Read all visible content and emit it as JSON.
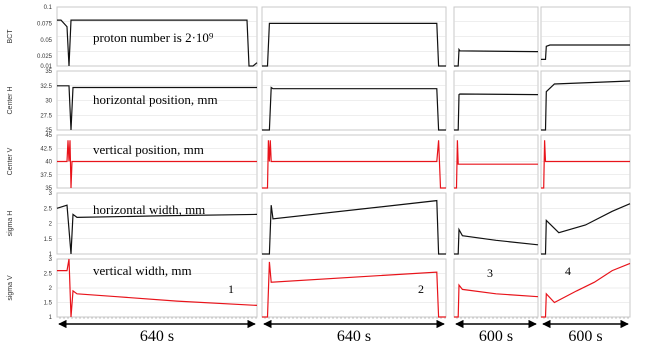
{
  "chart_data": {
    "type": "line",
    "colors": {
      "black": "#111111",
      "red": "#e8141b",
      "grid": "#dcdcdc",
      "frame": "#c8c8c8",
      "panel": "#ffffff"
    },
    "rows": [
      {
        "id": "bct",
        "ylabel": "BCT",
        "ylim": [
          0.01,
          0.1
        ],
        "ticks": [
          "0.1",
          "0.075",
          "0.05",
          "0.025",
          "0.01"
        ],
        "tickvals": [
          0.1,
          0.075,
          0.05,
          0.025,
          0.01
        ],
        "annotation": "proton number is 2·10⁹",
        "color": "black"
      },
      {
        "id": "centerH",
        "ylabel": "Center H",
        "ylim": [
          25,
          35
        ],
        "ticks": [
          "35",
          "32.5",
          "30",
          "27.5",
          "25"
        ],
        "tickvals": [
          35,
          32.5,
          30,
          27.5,
          25
        ],
        "annotation": "horizontal position, mm",
        "color": "black"
      },
      {
        "id": "centerV",
        "ylabel": "Center V",
        "ylim": [
          35,
          45
        ],
        "ticks": [
          "45",
          "42.5",
          "40",
          "37.5",
          "35"
        ],
        "tickvals": [
          45,
          42.5,
          40,
          37.5,
          35
        ],
        "annotation": "vertical position, mm",
        "color": "red"
      },
      {
        "id": "sigmaH",
        "ylabel": "sigma H",
        "ylim": [
          1,
          3
        ],
        "ticks": [
          "3",
          "2.5",
          "2",
          "1.5",
          "1"
        ],
        "tickvals": [
          3,
          2.5,
          2,
          1.5,
          1
        ],
        "annotation": "horizontal width, mm",
        "color": "black"
      },
      {
        "id": "sigmaV",
        "ylabel": "sigma V",
        "ylim": [
          1,
          3
        ],
        "ticks": [
          "3",
          "2.5",
          "2",
          "1.5",
          "1"
        ],
        "tickvals": [
          3,
          2.5,
          2,
          1.5,
          1
        ],
        "annotation": "vertical width, mm",
        "color": "red"
      }
    ],
    "runs": [
      {
        "label": "1",
        "duration": "640 s",
        "series": {
          "bct": {
            "t": [
              0,
              0.02,
              0.05,
              0.06,
              0.07,
              0.08,
              0.9,
              0.95,
              0.96,
              0.98,
              1.0
            ],
            "v": [
              0.08,
              0.08,
              0.07,
              0.01,
              0.08,
              0.08,
              0.08,
              0.08,
              0.01,
              0.01,
              0.015
            ]
          },
          "centerH": {
            "t": [
              0,
              0.06,
              0.07,
              0.08,
              0.09,
              1.0
            ],
            "v": [
              32.5,
              32.5,
              25,
              32.2,
              32.2,
              32.2
            ]
          },
          "centerV": {
            "t": [
              0,
              0.05,
              0.055,
              0.06,
              0.065,
              0.07,
              0.075,
              1.0
            ],
            "v": [
              40,
              40,
              44,
              40,
              44,
              35,
              40,
              40
            ]
          },
          "sigmaH": {
            "t": [
              0,
              0.05,
              0.07,
              0.08,
              0.1,
              0.5,
              1.0
            ],
            "v": [
              2.5,
              2.6,
              1.0,
              2.3,
              2.2,
              2.25,
              2.3
            ]
          },
          "sigmaV": {
            "t": [
              0,
              0.05,
              0.06,
              0.07,
              0.08,
              0.1,
              0.3,
              0.6,
              1.0
            ],
            "v": [
              2.6,
              2.6,
              3.0,
              1.0,
              1.9,
              1.8,
              1.7,
              1.55,
              1.4
            ]
          }
        }
      },
      {
        "label": "2",
        "duration": "640 s",
        "series": {
          "bct": {
            "t": [
              0,
              0.03,
              0.04,
              0.06,
              0.9,
              0.95,
              0.96,
              1.0
            ],
            "v": [
              0.01,
              0.01,
              0.075,
              0.075,
              0.075,
              0.075,
              0.01,
              0.01
            ]
          },
          "centerH": {
            "t": [
              0,
              0.04,
              0.05,
              0.06,
              0.95,
              0.96,
              1.0
            ],
            "v": [
              25,
              25,
              32.2,
              32,
              32,
              25,
              25
            ]
          },
          "centerV": {
            "t": [
              0,
              0.03,
              0.035,
              0.04,
              0.045,
              0.05,
              0.95,
              0.96,
              0.97,
              1.0
            ],
            "v": [
              35,
              35,
              44,
              40,
              44,
              40,
              40,
              44,
              35,
              35
            ]
          },
          "sigmaH": {
            "t": [
              0,
              0.04,
              0.05,
              0.06,
              0.95,
              0.96,
              1.0
            ],
            "v": [
              1,
              1,
              2.6,
              2.15,
              2.75,
              1,
              1
            ]
          },
          "sigmaV": {
            "t": [
              0,
              0.03,
              0.04,
              0.05,
              0.95,
              0.96,
              1.0
            ],
            "v": [
              1,
              1,
              2.9,
              2.2,
              2.55,
              1,
              1
            ]
          }
        }
      },
      {
        "label": "3",
        "duration": "600 s",
        "series": {
          "bct": {
            "t": [
              0,
              0.05,
              0.06,
              0.07,
              0.98,
              1.0
            ],
            "v": [
              0.01,
              0.01,
              0.035,
              0.033,
              0.032,
              0.032
            ]
          },
          "centerH": {
            "t": [
              0,
              0.05,
              0.06,
              0.07,
              1.0
            ],
            "v": [
              25,
              25,
              31,
              31.1,
              31
            ]
          },
          "centerV": {
            "t": [
              0,
              0.03,
              0.04,
              0.05,
              1.0
            ],
            "v": [
              35,
              35,
              44,
              39.5,
              39.5
            ]
          },
          "sigmaH": {
            "t": [
              0,
              0.05,
              0.06,
              0.1,
              0.5,
              1.0
            ],
            "v": [
              1,
              1,
              1.8,
              1.6,
              1.45,
              1.3
            ]
          },
          "sigmaV": {
            "t": [
              0,
              0.05,
              0.06,
              0.1,
              0.5,
              1.0
            ],
            "v": [
              1,
              1,
              2.1,
              1.95,
              1.8,
              1.7
            ]
          }
        }
      },
      {
        "label": "4",
        "duration": "600 s",
        "series": {
          "bct": {
            "t": [
              0,
              0.05,
              0.06,
              0.1,
              0.98,
              1.0
            ],
            "v": [
              0.02,
              0.02,
              0.04,
              0.042,
              0.042,
              0.042
            ]
          },
          "centerH": {
            "t": [
              0,
              0.05,
              0.06,
              0.15,
              1.0
            ],
            "v": [
              25,
              25,
              31.5,
              32.8,
              33.3
            ]
          },
          "centerV": {
            "t": [
              0,
              0.03,
              0.04,
              0.05,
              1.0
            ],
            "v": [
              35,
              35,
              44,
              40,
              40
            ]
          },
          "sigmaH": {
            "t": [
              0,
              0.05,
              0.06,
              0.2,
              0.5,
              0.8,
              1.0
            ],
            "v": [
              1,
              1,
              2.1,
              1.7,
              1.95,
              2.4,
              2.65
            ]
          },
          "sigmaV": {
            "t": [
              0,
              0.05,
              0.06,
              0.15,
              0.4,
              0.6,
              0.8,
              1.0
            ],
            "v": [
              1,
              1,
              1.8,
              1.5,
              1.9,
              2.2,
              2.6,
              2.85
            ]
          }
        }
      }
    ]
  }
}
